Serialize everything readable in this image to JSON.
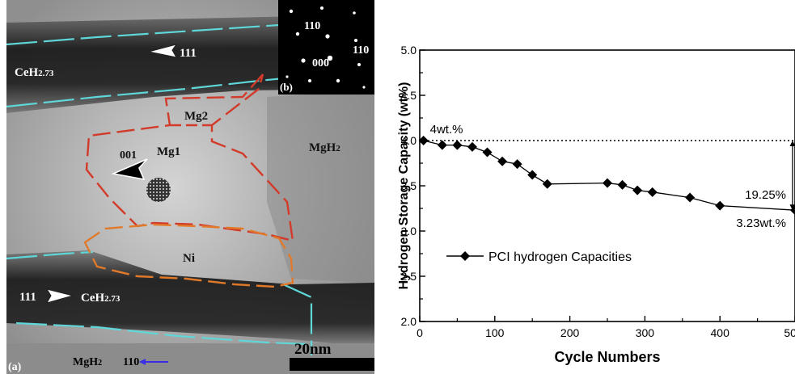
{
  "panel_a": {
    "panel_label": "(a)",
    "labels": {
      "ceh_top_main": "CeH",
      "ceh_top_sub": "2.73",
      "dir_111_top": "111",
      "mg2": "Mg2",
      "mg1": "Mg1",
      "dir_001": "001",
      "mgh2_right_main": "MgH",
      "mgh2_right_sub": "2",
      "ni": "Ni",
      "dir_111_bottom": "111",
      "ceh_bottom_main": "CeH",
      "ceh_bottom_sub": "2.73",
      "mgh2_bottom_main": "MgH",
      "mgh2_bottom_sub": "2",
      "dir_110": "110",
      "scale_bar": "20nm"
    },
    "colors": {
      "grain_boundary_cyan": "#5fd6d8",
      "mg_boundary_red": "#d23a2a",
      "ni_boundary_orange": "#e07a2a",
      "arrow_blue": "#3a2fe6"
    }
  },
  "panel_b": {
    "panel_label": "(b)",
    "spots": {
      "spot_110_top": "110",
      "spot_110_right": "110",
      "spot_000": "000"
    }
  },
  "chart_data": {
    "type": "line",
    "xlabel": "Cycle Numbers",
    "ylabel": "Hydrogen Storage Capacity (wt%)",
    "xlim": [
      0,
      500
    ],
    "ylim": [
      2.0,
      5.0
    ],
    "x_ticks": [
      "0",
      "100",
      "200",
      "300",
      "400",
      "500"
    ],
    "y_ticks": [
      "2.0",
      "2.5",
      "3.0",
      "3.5",
      "4.0",
      "4.5",
      "5.0"
    ],
    "legend_position": "left-middle",
    "series": [
      {
        "name": "PCI hydrogen Capacities",
        "marker": "diamond",
        "x": [
          5,
          30,
          50,
          70,
          90,
          110,
          130,
          150,
          170,
          250,
          270,
          290,
          310,
          360,
          400,
          500
        ],
        "y": [
          4.0,
          3.95,
          3.95,
          3.93,
          3.87,
          3.77,
          3.74,
          3.62,
          3.52,
          3.53,
          3.51,
          3.45,
          3.43,
          3.37,
          3.28,
          3.23
        ]
      }
    ],
    "reference_line": {
      "y": 4.0
    },
    "annotations": {
      "start_label": "4wt.%",
      "drop_label": "19.25%",
      "end_label": "3.23wt.%"
    }
  }
}
